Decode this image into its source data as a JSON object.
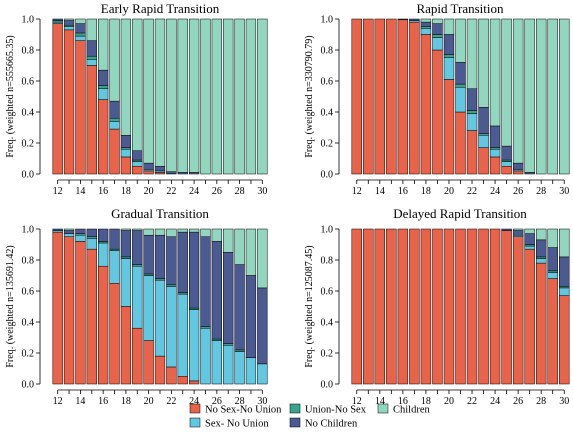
{
  "colors": {
    "No Sex-No Union": "#e8634a",
    "Sex- No Union": "#62c7e0",
    "Union-No Sex": "#3aa38c",
    "No Children": "#4c5a92",
    "Children": "#93d6c0"
  },
  "legend": {
    "items": [
      "No Sex-No Union",
      "Union-No Sex",
      "Children",
      "Sex- No Union",
      "No Children"
    ]
  },
  "chart_data": [
    {
      "type": "bar",
      "stacked": true,
      "title": "Early Rapid Transition",
      "ylabel": "Freq. (weighted n=555665.35)",
      "ylim": [
        0,
        1
      ],
      "yticks": [
        "0.0",
        "0.2",
        "0.4",
        "0.6",
        "0.8",
        "1.0"
      ],
      "xtick_labels": [
        "12",
        "14",
        "16",
        "18",
        "20",
        "22",
        "24",
        "26",
        "28",
        "30"
      ],
      "categories": [
        12,
        13,
        14,
        15,
        16,
        17,
        18,
        19,
        20,
        21,
        22,
        23,
        24,
        25,
        26,
        27,
        28,
        29,
        30
      ],
      "series": [
        {
          "name": "No Sex-No Union",
          "values": [
            0.97,
            0.93,
            0.86,
            0.7,
            0.48,
            0.29,
            0.11,
            0.05,
            0.02,
            0.01,
            0,
            0,
            0,
            0,
            0,
            0,
            0,
            0,
            0
          ]
        },
        {
          "name": "Sex- No Union",
          "values": [
            0.01,
            0.02,
            0.03,
            0.04,
            0.07,
            0.05,
            0.05,
            0.03,
            0.01,
            0.01,
            0.005,
            0,
            0,
            0,
            0,
            0,
            0,
            0,
            0
          ]
        },
        {
          "name": "Union-No Sex",
          "values": [
            0.01,
            0.01,
            0.02,
            0.02,
            0.02,
            0.02,
            0.01,
            0.01,
            0,
            0,
            0,
            0,
            0,
            0,
            0,
            0,
            0,
            0,
            0
          ]
        },
        {
          "name": "No Children",
          "values": [
            0.01,
            0.03,
            0.06,
            0.1,
            0.1,
            0.11,
            0.08,
            0.06,
            0.04,
            0.03,
            0.01,
            0.01,
            0.01,
            0,
            0,
            0,
            0,
            0,
            0
          ]
        },
        {
          "name": "Children",
          "values": [
            0,
            0.01,
            0.03,
            0.14,
            0.33,
            0.53,
            0.75,
            0.85,
            0.93,
            0.95,
            0.985,
            0.99,
            0.99,
            1,
            1,
            1,
            1,
            1,
            1
          ]
        }
      ]
    },
    {
      "type": "bar",
      "stacked": true,
      "title": "Rapid Transition",
      "ylabel": "Freq. (weighted n=330790.79)",
      "ylim": [
        0,
        1
      ],
      "yticks": [
        "0.0",
        "0.2",
        "0.4",
        "0.6",
        "0.8",
        "1.0"
      ],
      "xtick_labels": [
        "12",
        "14",
        "16",
        "18",
        "20",
        "22",
        "24",
        "26",
        "28",
        "30"
      ],
      "categories": [
        12,
        13,
        14,
        15,
        16,
        17,
        18,
        19,
        20,
        21,
        22,
        23,
        24,
        25,
        26,
        27,
        28,
        29,
        30
      ],
      "series": [
        {
          "name": "No Sex-No Union",
          "values": [
            1,
            1,
            1,
            1,
            0.995,
            0.98,
            0.9,
            0.8,
            0.61,
            0.4,
            0.28,
            0.17,
            0.11,
            0.05,
            0.02,
            0,
            0,
            0,
            0
          ]
        },
        {
          "name": "Sex- No Union",
          "values": [
            0,
            0,
            0,
            0,
            0,
            0.01,
            0.04,
            0.08,
            0.14,
            0.16,
            0.11,
            0.08,
            0.05,
            0.03,
            0.01,
            0,
            0,
            0,
            0
          ]
        },
        {
          "name": "Union-No Sex",
          "values": [
            0,
            0,
            0,
            0,
            0,
            0,
            0.01,
            0.02,
            0.02,
            0.02,
            0.02,
            0.01,
            0.01,
            0.01,
            0,
            0,
            0,
            0,
            0
          ]
        },
        {
          "name": "No Children",
          "values": [
            0,
            0,
            0,
            0,
            0.005,
            0.01,
            0.03,
            0.07,
            0.13,
            0.14,
            0.14,
            0.17,
            0.14,
            0.09,
            0.04,
            0.01,
            0,
            0,
            0
          ]
        },
        {
          "name": "Children",
          "values": [
            0,
            0,
            0,
            0,
            0,
            0,
            0.02,
            0.03,
            0.1,
            0.28,
            0.45,
            0.57,
            0.69,
            0.82,
            0.93,
            0.99,
            1,
            1,
            1
          ]
        }
      ]
    },
    {
      "type": "bar",
      "stacked": true,
      "title": "Gradual Transition",
      "ylabel": "Freq. (weighted n=135691.42)",
      "ylim": [
        0,
        1
      ],
      "yticks": [
        "0.0",
        "0.2",
        "0.4",
        "0.6",
        "0.8",
        "1.0"
      ],
      "xtick_labels": [
        "12",
        "14",
        "16",
        "18",
        "20",
        "22",
        "24",
        "26",
        "28",
        "30"
      ],
      "categories": [
        12,
        13,
        14,
        15,
        16,
        17,
        18,
        19,
        20,
        21,
        22,
        23,
        24,
        25,
        26,
        27,
        28,
        29,
        30
      ],
      "series": [
        {
          "name": "No Sex-No Union",
          "values": [
            0.98,
            0.95,
            0.92,
            0.87,
            0.76,
            0.65,
            0.5,
            0.36,
            0.28,
            0.18,
            0.11,
            0.05,
            0.02,
            0,
            0,
            0,
            0,
            0,
            0
          ]
        },
        {
          "name": "Sex- No Union",
          "values": [
            0.01,
            0.02,
            0.04,
            0.07,
            0.15,
            0.21,
            0.31,
            0.4,
            0.42,
            0.49,
            0.52,
            0.53,
            0.46,
            0.36,
            0.28,
            0.25,
            0.21,
            0.17,
            0.13
          ]
        },
        {
          "name": "Union-No Sex",
          "values": [
            0,
            0,
            0.01,
            0.01,
            0.01,
            0.01,
            0.01,
            0.01,
            0.01,
            0.01,
            0.01,
            0.01,
            0.01,
            0.01,
            0.01,
            0.01,
            0.01,
            0,
            0
          ]
        },
        {
          "name": "No Children",
          "values": [
            0.01,
            0.02,
            0.03,
            0.05,
            0.08,
            0.13,
            0.17,
            0.22,
            0.25,
            0.28,
            0.31,
            0.39,
            0.49,
            0.58,
            0.63,
            0.59,
            0.55,
            0.53,
            0.49
          ]
        },
        {
          "name": "Children",
          "values": [
            0,
            0.01,
            0,
            0,
            0,
            0,
            0.01,
            0.01,
            0.04,
            0.04,
            0.05,
            0.02,
            0.02,
            0.05,
            0.08,
            0.15,
            0.23,
            0.3,
            0.38
          ]
        }
      ]
    },
    {
      "type": "bar",
      "stacked": true,
      "title": "Delayed Rapid Transition",
      "ylabel": "Freq. (weighted n=125087.45)",
      "ylim": [
        0,
        1
      ],
      "yticks": [
        "0.0",
        "0.2",
        "0.4",
        "0.6",
        "0.8",
        "1.0"
      ],
      "xtick_labels": [
        "12",
        "14",
        "16",
        "18",
        "20",
        "22",
        "24",
        "26",
        "28",
        "30"
      ],
      "categories": [
        12,
        13,
        14,
        15,
        16,
        17,
        18,
        19,
        20,
        21,
        22,
        23,
        24,
        25,
        26,
        27,
        28,
        29,
        30
      ],
      "series": [
        {
          "name": "No Sex-No Union",
          "values": [
            1,
            1,
            1,
            1,
            1,
            1,
            1,
            1,
            1,
            1,
            1,
            1,
            1,
            0.99,
            0.95,
            0.87,
            0.78,
            0.68,
            0.57
          ]
        },
        {
          "name": "Sex- No Union",
          "values": [
            0,
            0,
            0,
            0,
            0,
            0,
            0,
            0,
            0,
            0,
            0,
            0,
            0,
            0,
            0.01,
            0.02,
            0.03,
            0.04,
            0.05
          ]
        },
        {
          "name": "Union-No Sex",
          "values": [
            0,
            0,
            0,
            0,
            0,
            0,
            0,
            0,
            0,
            0,
            0,
            0,
            0,
            0,
            0,
            0.01,
            0.01,
            0.01,
            0.01
          ]
        },
        {
          "name": "No Children",
          "values": [
            0,
            0,
            0,
            0,
            0,
            0,
            0,
            0,
            0,
            0,
            0,
            0,
            0,
            0.01,
            0.03,
            0.07,
            0.11,
            0.15,
            0.19
          ]
        },
        {
          "name": "Children",
          "values": [
            0,
            0,
            0,
            0,
            0,
            0,
            0,
            0,
            0,
            0,
            0,
            0,
            0,
            0,
            0.01,
            0.03,
            0.07,
            0.12,
            0.18
          ]
        }
      ]
    }
  ]
}
